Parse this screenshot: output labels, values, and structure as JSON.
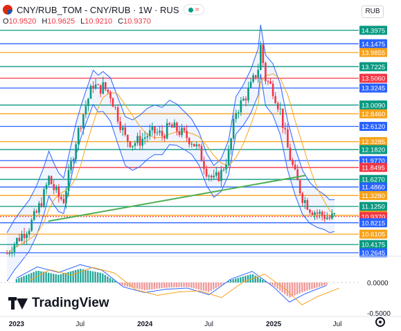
{
  "header": {
    "symbol_label": "CNY/RUB_TOM - CNY/RUB · 1W · RUS",
    "ohlc": [
      {
        "key": "O",
        "value": "10.9520"
      },
      {
        "key": "H",
        "value": "10.9625"
      },
      {
        "key": "L",
        "value": "10.9210"
      },
      {
        "key": "C",
        "value": "10.9370"
      }
    ],
    "currency": "RUB",
    "flag_icon": "china-flag-icon",
    "status_icon": "market-open-dot-icon",
    "wave_icon": "wave-icon"
  },
  "branding": {
    "logo_text": "TradingView",
    "logo_icon": "tradingview-logo-icon"
  },
  "settings_icon": "gear-icon",
  "chart_data": {
    "type": "candlestick",
    "timeframe": "1W",
    "x_ticks": [
      "2023",
      "Jul",
      "2024",
      "Jul",
      "2025",
      "Jul"
    ],
    "x_tick_dates": [
      "2023-01-01",
      "2023-07-01",
      "2024-01-01",
      "2024-07-01",
      "2025-01-01",
      "2025-07-01"
    ],
    "x_range": [
      "2022-11-15",
      "2025-08-31"
    ],
    "y_range": [
      10.2,
      14.6
    ],
    "price_levels": [
      {
        "label": "14.3975",
        "color": "#089981"
      },
      {
        "label": "14.1475",
        "color": "#2962ff"
      },
      {
        "label": "13.9855",
        "color": "#f7a21b"
      },
      {
        "label": "13.7225",
        "color": "#089981"
      },
      {
        "label": "13.5060",
        "color": "#f23645"
      },
      {
        "label": "13.3245",
        "color": "#2962ff"
      },
      {
        "label": "13.0090",
        "color": "#089981"
      },
      {
        "label": "12.8460",
        "color": "#f7a21b"
      },
      {
        "label": "12.6120",
        "color": "#2962ff"
      },
      {
        "label": "12.3285",
        "color": "#f7a21b"
      },
      {
        "label": "12.1820",
        "color": "#089981"
      },
      {
        "label": "11.9770",
        "color": "#2962ff"
      },
      {
        "label": "11.8495",
        "color": "#f23645"
      },
      {
        "label": "11.6270",
        "color": "#089981"
      },
      {
        "label": "11.4860",
        "color": "#2962ff"
      },
      {
        "label": "11.3280",
        "color": "#f7a21b"
      },
      {
        "label": "11.1250",
        "color": "#089981"
      },
      {
        "label": "10.9600",
        "color": "#f7a21b"
      },
      {
        "label": "10.9370",
        "color": "#f23645"
      },
      {
        "label": "10.8215",
        "color": "#2962ff"
      },
      {
        "label": "10.6105",
        "color": "#f7a21b"
      },
      {
        "label": "10.4175",
        "color": "#089981"
      },
      {
        "label": "10.2645",
        "color": "#2962ff"
      }
    ],
    "current_price": "10.9370",
    "price_path": [
      [
        "2022-12-05",
        10.25
      ],
      [
        "2022-12-26",
        10.45
      ],
      [
        "2023-01-16",
        10.6
      ],
      [
        "2023-02-06",
        10.75
      ],
      [
        "2023-02-27",
        11.0
      ],
      [
        "2023-03-20",
        11.35
      ],
      [
        "2023-04-03",
        11.65
      ],
      [
        "2023-04-17",
        11.45
      ],
      [
        "2023-05-01",
        11.3
      ],
      [
        "2023-05-15",
        11.25
      ],
      [
        "2023-06-05",
        11.9
      ],
      [
        "2023-06-19",
        12.35
      ],
      [
        "2023-07-03",
        12.7
      ],
      [
        "2023-07-17",
        13.0
      ],
      [
        "2023-08-07",
        13.4
      ],
      [
        "2023-08-21",
        13.3
      ],
      [
        "2023-09-04",
        13.35
      ],
      [
        "2023-09-25",
        13.2
      ],
      [
        "2023-10-16",
        12.8
      ],
      [
        "2023-11-06",
        12.4
      ],
      [
        "2023-11-27",
        12.3
      ],
      [
        "2023-12-18",
        12.35
      ],
      [
        "2024-01-08",
        12.45
      ],
      [
        "2024-01-29",
        12.5
      ],
      [
        "2024-02-19",
        12.45
      ],
      [
        "2024-03-11",
        12.6
      ],
      [
        "2024-04-01",
        12.55
      ],
      [
        "2024-04-22",
        12.45
      ],
      [
        "2024-05-13",
        12.35
      ],
      [
        "2024-06-03",
        12.15
      ],
      [
        "2024-06-24",
        11.8
      ],
      [
        "2024-07-15",
        11.6
      ],
      [
        "2024-08-05",
        11.75
      ],
      [
        "2024-08-26",
        12.1
      ],
      [
        "2024-09-16",
        12.9
      ],
      [
        "2024-10-07",
        13.1
      ],
      [
        "2024-10-28",
        13.35
      ],
      [
        "2024-11-18",
        13.7
      ],
      [
        "2024-11-25",
        14.1
      ],
      [
        "2024-12-09",
        13.5
      ],
      [
        "2024-12-30",
        13.3
      ],
      [
        "2025-01-20",
        12.9
      ],
      [
        "2025-02-10",
        12.2
      ],
      [
        "2025-03-03",
        11.7
      ],
      [
        "2025-03-24",
        11.3
      ],
      [
        "2025-04-14",
        11.1
      ],
      [
        "2025-05-05",
        11.0
      ],
      [
        "2025-05-26",
        10.95
      ],
      [
        "2025-06-09",
        10.9
      ],
      [
        "2025-06-23",
        10.94
      ]
    ],
    "trendline": {
      "from": [
        "2023-04-01",
        10.85
      ],
      "to": [
        "2025-04-01",
        11.7
      ]
    },
    "macd": {
      "y_ticks": [
        "0.0000",
        "-0.5000"
      ],
      "zero_value": 0.0,
      "histogram_sample": [
        [
          "2023-01-01",
          0.08
        ],
        [
          "2023-03-01",
          0.28
        ],
        [
          "2023-05-01",
          0.18
        ],
        [
          "2023-07-01",
          0.32
        ],
        [
          "2023-09-01",
          0.22
        ],
        [
          "2023-11-01",
          -0.08
        ],
        [
          "2024-01-01",
          -0.18
        ],
        [
          "2024-03-01",
          -0.12
        ],
        [
          "2024-05-01",
          -0.1
        ],
        [
          "2024-07-01",
          -0.22
        ],
        [
          "2024-09-01",
          0.06
        ],
        [
          "2024-11-01",
          0.2
        ],
        [
          "2025-01-01",
          -0.08
        ],
        [
          "2025-02-15",
          -0.35
        ],
        [
          "2025-04-01",
          -0.2
        ],
        [
          "2025-06-01",
          -0.05
        ]
      ]
    }
  }
}
